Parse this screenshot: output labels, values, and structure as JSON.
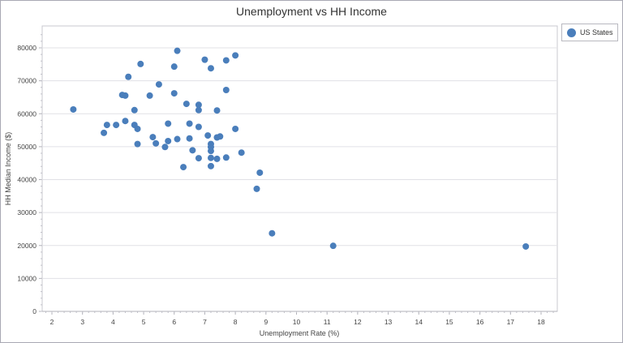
{
  "chart_data": {
    "type": "scatter",
    "title": "Unemployment vs HH Income",
    "xlabel": "Unemployment Rate (%)",
    "ylabel": "HH Median Income ($)",
    "xlim": [
      1.8,
      18.5
    ],
    "ylim": [
      0,
      84000
    ],
    "x_ticks": [
      2,
      3,
      4,
      5,
      6,
      7,
      8,
      9,
      10,
      11,
      12,
      13,
      14,
      15,
      16,
      17,
      18
    ],
    "y_ticks": [
      0,
      10000,
      20000,
      30000,
      40000,
      50000,
      60000,
      70000,
      80000
    ],
    "grid": {
      "horizontal": true,
      "vertical": false
    },
    "legend_position": "top-right",
    "series": [
      {
        "name": "US States",
        "color": "#4a7ebb",
        "points": [
          [
            2.7,
            61300
          ],
          [
            3.7,
            54200
          ],
          [
            3.8,
            56600
          ],
          [
            4.1,
            56600
          ],
          [
            4.3,
            65700
          ],
          [
            4.4,
            65500
          ],
          [
            4.4,
            57800
          ],
          [
            4.5,
            71200
          ],
          [
            4.7,
            61100
          ],
          [
            4.7,
            56600
          ],
          [
            4.8,
            55400
          ],
          [
            4.8,
            50800
          ],
          [
            4.9,
            75100
          ],
          [
            5.2,
            65500
          ],
          [
            5.3,
            52900
          ],
          [
            5.4,
            51000
          ],
          [
            5.5,
            68900
          ],
          [
            5.7,
            49900
          ],
          [
            5.8,
            57000
          ],
          [
            5.8,
            51700
          ],
          [
            6.0,
            74300
          ],
          [
            6.0,
            66200
          ],
          [
            6.1,
            79100
          ],
          [
            6.1,
            52300
          ],
          [
            6.3,
            43800
          ],
          [
            6.4,
            63000
          ],
          [
            6.5,
            57000
          ],
          [
            6.5,
            52500
          ],
          [
            6.6,
            48900
          ],
          [
            6.8,
            46500
          ],
          [
            6.8,
            62700
          ],
          [
            6.8,
            61100
          ],
          [
            6.8,
            56000
          ],
          [
            7.0,
            76400
          ],
          [
            7.1,
            53400
          ],
          [
            7.2,
            73800
          ],
          [
            7.2,
            50800
          ],
          [
            7.2,
            49900
          ],
          [
            7.2,
            48700
          ],
          [
            7.2,
            46600
          ],
          [
            7.2,
            44100
          ],
          [
            7.4,
            61000
          ],
          [
            7.4,
            52800
          ],
          [
            7.4,
            46300
          ],
          [
            7.5,
            53100
          ],
          [
            7.7,
            76200
          ],
          [
            7.7,
            67200
          ],
          [
            7.7,
            46700
          ],
          [
            8.0,
            77700
          ],
          [
            8.0,
            55400
          ],
          [
            8.2,
            48200
          ],
          [
            8.8,
            42100
          ],
          [
            8.7,
            37200
          ],
          [
            9.2,
            23700
          ],
          [
            11.2,
            19900
          ],
          [
            17.5,
            19700
          ]
        ]
      }
    ]
  },
  "legend": {
    "label": "US States"
  }
}
